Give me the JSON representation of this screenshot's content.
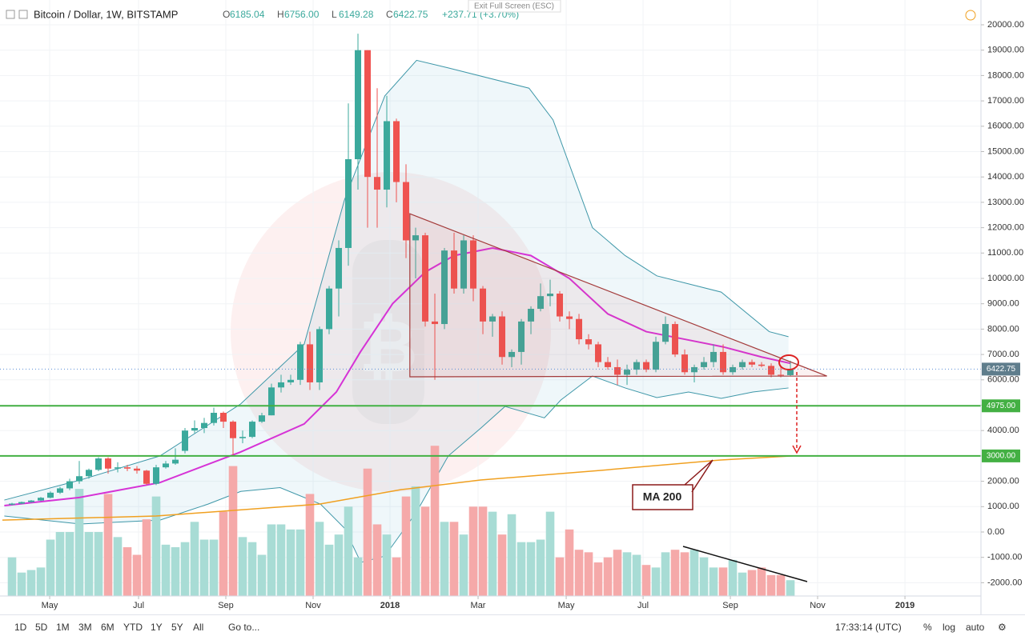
{
  "header": {
    "symbol": "Bitcoin / Dollar, 1W, BITSTAMP",
    "ohlc": [
      {
        "key": "O",
        "value": "6185.04"
      },
      {
        "key": "H",
        "value": "6756.00"
      },
      {
        "key": "L",
        "value": "6149.28"
      },
      {
        "key": "C",
        "value": "6422.75"
      }
    ],
    "change": "+237.71 (+3.70%)",
    "tooltip": "Exit Full Screen (ESC)"
  },
  "chart_data": {
    "type": "candlestick",
    "up_color": "#3ba99c",
    "down_color": "#ef5350",
    "volume_up_color": "#a8dcd5",
    "volume_down_color": "#f5a9a9",
    "xlim": [
      -1.25,
      100.83
    ],
    "ylim": [
      -2524,
      20978
    ],
    "grid": true,
    "xticks": [
      {
        "value": 3.92,
        "label": "May"
      },
      {
        "value": 13.17,
        "label": "Jul"
      },
      {
        "value": 22.25,
        "label": "Sep"
      },
      {
        "value": 31.33,
        "label": "Nov"
      },
      {
        "value": 39.33,
        "label": "2018"
      },
      {
        "value": 48.5,
        "label": "Mar"
      },
      {
        "value": 57.67,
        "label": "May"
      },
      {
        "value": 65.67,
        "label": "Jul"
      },
      {
        "value": 74.75,
        "label": "Sep"
      },
      {
        "value": 83.83,
        "label": "Nov"
      },
      {
        "value": 92.92,
        "label": "2019"
      }
    ],
    "yticks": [
      {
        "value": 20000,
        "label": "20000.00"
      },
      {
        "value": 19000,
        "label": "19000.00"
      },
      {
        "value": 18000,
        "label": "18000.00"
      },
      {
        "value": 17000,
        "label": "17000.00"
      },
      {
        "value": 16000,
        "label": "16000.00"
      },
      {
        "value": 15000,
        "label": "15000.00"
      },
      {
        "value": 14000,
        "label": "14000.00"
      },
      {
        "value": 13000,
        "label": "13000.00"
      },
      {
        "value": 12000,
        "label": "12000.00"
      },
      {
        "value": 11000,
        "label": "11000.00"
      },
      {
        "value": 10000,
        "label": "10000.00"
      },
      {
        "value": 9000,
        "label": "9000.00"
      },
      {
        "value": 8000,
        "label": "8000.00"
      },
      {
        "value": 7000,
        "label": "7000.00"
      },
      {
        "value": 6000,
        "label": "6000.00"
      },
      {
        "value": 5000,
        "label": "5000.00"
      },
      {
        "value": 4000,
        "label": "4000.00"
      },
      {
        "value": 3000,
        "label": "3000.00"
      },
      {
        "value": 2000,
        "label": "2000.00"
      },
      {
        "value": 1000,
        "label": "1000.00"
      },
      {
        "value": 0,
        "label": "0.00"
      },
      {
        "value": -1000,
        "label": "-1000.00"
      },
      {
        "value": -2000,
        "label": "-2000.00"
      }
    ],
    "open": [
      1080,
      1120,
      1180,
      1240,
      1350,
      1550,
      1720,
      2000,
      2200,
      2450,
      2900,
      2500,
      2550,
      2500,
      2420,
      1900,
      2550,
      2700,
      3200,
      4000,
      4100,
      4300,
      4700,
      4350,
      3700,
      3750,
      4350,
      4600,
      5700,
      5900,
      6000,
      7400,
      5900,
      8000,
      9600,
      11200,
      14700,
      19000,
      14000,
      13500,
      16200,
      13800,
      11500,
      11700,
      8300,
      8200,
      11100,
      9600,
      11500,
      9600,
      8300,
      8500,
      6900,
      7100,
      8300,
      8800,
      9300,
      9400,
      8500,
      8400,
      7600,
      7400,
      6700,
      6500,
      6200,
      6400,
      6700,
      6400,
      7500,
      8200,
      7000,
      6300,
      6500,
      6700,
      7100,
      6300,
      6500,
      6700,
      6600,
      6550,
      6200,
      6185.04
    ],
    "high": [
      1150,
      1200,
      1260,
      1380,
      1600,
      1780,
      2100,
      2800,
      2500,
      2950,
      2950,
      2750,
      2650,
      2600,
      2450,
      2650,
      2800,
      3300,
      4100,
      4400,
      4500,
      4900,
      4750,
      4400,
      4000,
      4400,
      4700,
      5850,
      6200,
      6200,
      7500,
      7900,
      8100,
      9700,
      11500,
      16900,
      19650,
      19000,
      17500,
      17200,
      16300,
      14500,
      12000,
      11800,
      9400,
      11200,
      11800,
      11700,
      11700,
      9700,
      8600,
      8700,
      7200,
      8400,
      8900,
      9800,
      9950,
      9500,
      8700,
      8600,
      7800,
      7500,
      6900,
      6800,
      6600,
      6800,
      6800,
      7700,
      8500,
      8300,
      7200,
      6600,
      6900,
      7400,
      7400,
      6600,
      6800,
      6800,
      6700,
      6650,
      6500,
      6756
    ],
    "low": [
      1050,
      1100,
      1150,
      1220,
      1330,
      1500,
      1650,
      1900,
      2100,
      2400,
      2300,
      2350,
      2400,
      2300,
      1850,
      1850,
      2500,
      2650,
      3100,
      3900,
      3900,
      4200,
      4100,
      2980,
      3500,
      3700,
      4300,
      4600,
      5500,
      5800,
      5800,
      5600,
      5600,
      7800,
      8500,
      10500,
      13500,
      12000,
      12000,
      12800,
      13000,
      10800,
      10000,
      8100,
      6000,
      8000,
      9400,
      9400,
      9100,
      7800,
      7700,
      6600,
      6500,
      6600,
      7800,
      8700,
      8900,
      8300,
      8000,
      7400,
      7200,
      6500,
      6400,
      5800,
      5800,
      6200,
      6300,
      6300,
      7400,
      6900,
      6200,
      5900,
      6400,
      6500,
      6200,
      6200,
      6400,
      6500,
      6500,
      6100,
      6100,
      6149.28
    ],
    "close": [
      1120,
      1180,
      1240,
      1350,
      1550,
      1720,
      2000,
      2200,
      2450,
      2900,
      2500,
      2550,
      2500,
      2420,
      1900,
      2550,
      2700,
      2850,
      4000,
      4100,
      4300,
      4700,
      4350,
      3700,
      3750,
      4350,
      4600,
      5700,
      5900,
      6000,
      7400,
      5900,
      8000,
      9600,
      11200,
      14700,
      19000,
      14000,
      13500,
      16200,
      13800,
      11500,
      11700,
      8300,
      8200,
      11100,
      9600,
      11500,
      9600,
      8300,
      8500,
      6900,
      7100,
      8300,
      8800,
      9300,
      9400,
      8500,
      8400,
      7600,
      7400,
      6700,
      6500,
      6200,
      6400,
      6700,
      6400,
      7500,
      8200,
      7000,
      6300,
      6500,
      6700,
      7100,
      6300,
      6500,
      6700,
      6600,
      6550,
      6200,
      6180,
      6422.75
    ],
    "volume": [
      -1000,
      -1600,
      -1500,
      -1400,
      -300,
      0,
      0,
      1700,
      0,
      0,
      1500,
      -200,
      -600,
      -900,
      500,
      1400,
      -500,
      -600,
      -400,
      400,
      -300,
      -300,
      800,
      2600,
      -200,
      -400,
      -900,
      300,
      300,
      100,
      100,
      1500,
      400,
      -500,
      -100,
      1000,
      -1000,
      2500,
      300,
      -100,
      -1000,
      1400,
      1800,
      1000,
      3400,
      400,
      400,
      -100,
      1000,
      1000,
      800,
      -100,
      700,
      -400,
      -400,
      -300,
      800,
      -1000,
      100,
      -700,
      -800,
      -1200,
      -1000,
      -700,
      -800,
      -900,
      -1300,
      -1400,
      -800,
      -700,
      -800,
      -700,
      -1000,
      -1400,
      -1400,
      -1100,
      -1600,
      -1500,
      -1400,
      -1700,
      -1700,
      -1900
    ],
    "ma_short": {
      "color": "#d633d6",
      "x": [
        -0.8,
        7,
        15.4,
        23.75,
        30.4,
        33.75,
        36.25,
        39.6,
        43,
        46,
        50,
        54,
        58,
        62,
        66,
        70,
        74,
        78,
        81
      ],
      "values": [
        1040,
        1360,
        1950,
        3150,
        4260,
        5520,
        7100,
        9000,
        10250,
        10900,
        11200,
        10900,
        10000,
        8600,
        7900,
        7600,
        7300,
        6900,
        6650
      ]
    },
    "ma_200": {
      "color": "#f0a020",
      "x": [
        -1,
        15,
        32,
        40.5,
        48.75,
        61.25,
        73.75,
        81.25
      ],
      "values": [
        470,
        630,
        1100,
        1670,
        2050,
        2430,
        2840,
        3000
      ]
    },
    "band_color": "#3e97a8",
    "band_fill": "rgba(120,190,210,0.12)",
    "band_upper": {
      "x": [
        -0.8,
        7.1,
        15.4,
        23.8,
        30.4,
        34.6,
        38.8,
        42.1,
        45.4,
        53.8,
        56.3,
        60.4,
        63.8,
        67.1,
        73.8,
        78.8,
        80.8
      ],
      "values": [
        1260,
        2050,
        3000,
        5050,
        7400,
        13100,
        17200,
        18600,
        18300,
        17500,
        16250,
        12000,
        10900,
        10100,
        9460,
        7900,
        7700
      ]
    },
    "band_lower": {
      "x": [
        -0.8,
        7.1,
        15.4,
        20.4,
        23.8,
        27.9,
        32.1,
        34.6,
        36.3,
        38.8,
        42.1,
        45.4,
        48.8,
        51.3,
        55.4,
        57.1,
        60.4,
        63.8,
        67.1,
        70.4,
        73.8,
        77.1,
        80.8
      ],
      "values": [
        630,
        315,
        470,
        1100,
        1600,
        1750,
        1100,
        150,
        -1200,
        -950,
        790,
        3000,
        4100,
        4950,
        4500,
        5200,
        6150,
        5680,
        5300,
        5520,
        5270,
        5520,
        5680
      ]
    },
    "levels": [
      {
        "value": 4975,
        "label": "4975.00"
      },
      {
        "value": 3000,
        "label": "3000.00"
      }
    ],
    "level_color": "#43b043",
    "last_price": {
      "value": 6422.75,
      "label": "6422.75",
      "color": "#5f7d8c"
    },
    "triangle": {
      "color": "#a33a3a",
      "x": [
        41.4,
        84.8,
        41.4
      ],
      "values": [
        12550,
        6150,
        6120
      ]
    },
    "annotation": "MA 200"
  },
  "toolbar": {
    "ranges": [
      "1D",
      "5D",
      "1M",
      "3M",
      "6M",
      "YTD",
      "1Y",
      "5Y",
      "All"
    ],
    "goto": "Go to...",
    "time": "17:33:14 (UTC)",
    "percent": "%",
    "log": "log",
    "auto": "auto"
  }
}
